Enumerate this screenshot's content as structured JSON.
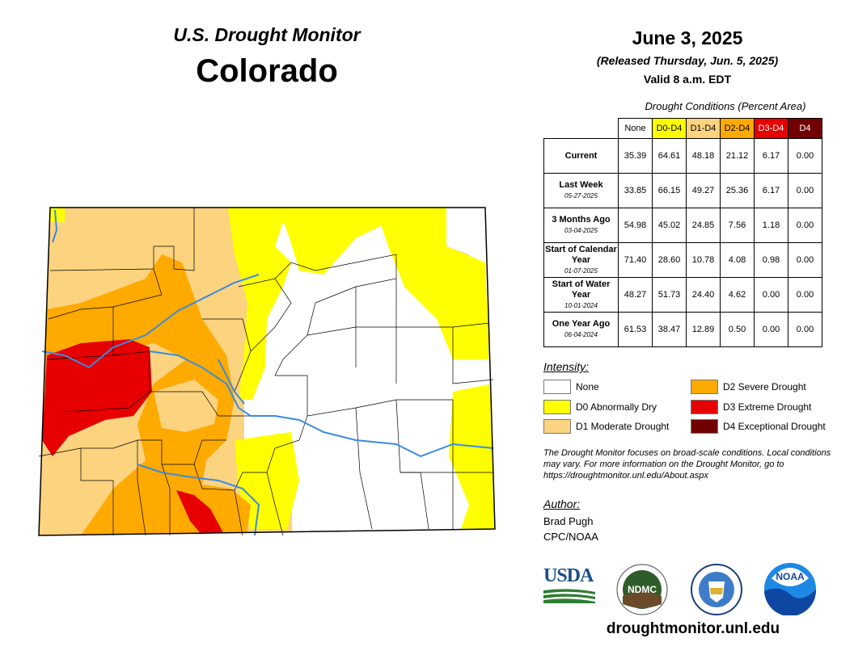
{
  "header": {
    "monitor": "U.S. Drought Monitor",
    "state": "Colorado",
    "date": "June 3, 2025",
    "released": "(Released Thursday, Jun. 5, 2025)",
    "valid": "Valid 8 a.m. EDT"
  },
  "table": {
    "caption": "Drought Conditions (Percent Area)",
    "columns": [
      {
        "label": "None",
        "bg": "#ffffff",
        "fg": "#000000"
      },
      {
        "label": "D0-D4",
        "bg": "#ffff00",
        "fg": "#000000"
      },
      {
        "label": "D1-D4",
        "bg": "#fcd37f",
        "fg": "#000000"
      },
      {
        "label": "D2-D4",
        "bg": "#ffaa00",
        "fg": "#000000"
      },
      {
        "label": "D3-D4",
        "bg": "#e60000",
        "fg": "#ffffff"
      },
      {
        "label": "D4",
        "bg": "#730000",
        "fg": "#ffffff"
      }
    ],
    "rows": [
      {
        "label": "Current",
        "sub": "",
        "values": [
          "35.39",
          "64.61",
          "48.18",
          "21.12",
          "6.17",
          "0.00"
        ]
      },
      {
        "label": "Last Week",
        "sub": "05-27-2025",
        "values": [
          "33.85",
          "66.15",
          "49.27",
          "25.36",
          "6.17",
          "0.00"
        ]
      },
      {
        "label": "3 Months Ago",
        "sub": "03-04-2025",
        "values": [
          "54.98",
          "45.02",
          "24.85",
          "7.56",
          "1.18",
          "0.00"
        ]
      },
      {
        "label": "Start of Calendar Year",
        "sub": "01-07-2025",
        "values": [
          "71.40",
          "28.60",
          "10.78",
          "4.08",
          "0.98",
          "0.00"
        ]
      },
      {
        "label": "Start of Water Year",
        "sub": "10-01-2024",
        "values": [
          "48.27",
          "51.73",
          "24.40",
          "4.62",
          "0.00",
          "0.00"
        ]
      },
      {
        "label": "One Year Ago",
        "sub": "06-04-2024",
        "values": [
          "61.53",
          "38.47",
          "12.89",
          "0.50",
          "0.00",
          "0.00"
        ]
      }
    ]
  },
  "legend": {
    "title": "Intensity:",
    "items": [
      {
        "label": "None",
        "color": "#ffffff"
      },
      {
        "label": "D0 Abnormally Dry",
        "color": "#ffff00"
      },
      {
        "label": "D1 Moderate Drought",
        "color": "#fcd37f"
      },
      {
        "label": "D2 Severe Drought",
        "color": "#ffaa00"
      },
      {
        "label": "D3 Extreme Drought",
        "color": "#e60000"
      },
      {
        "label": "D4 Exceptional Drought",
        "color": "#730000"
      }
    ]
  },
  "note": "The Drought Monitor focuses on broad-scale conditions. Local conditions may vary. For more information on the Drought Monitor, go to https://droughtmonitor.unl.edu/About.aspx",
  "author": {
    "title": "Author:",
    "name": "Brad Pugh",
    "org": "CPC/NOAA"
  },
  "logos": [
    {
      "name": "usda-logo",
      "text": "USDA"
    },
    {
      "name": "ndmc-logo",
      "text": "NDMC"
    },
    {
      "name": "doc-seal-logo",
      "text": ""
    },
    {
      "name": "noaa-logo",
      "text": "NOAA"
    }
  ],
  "website": "droughtmonitor.unl.edu"
}
